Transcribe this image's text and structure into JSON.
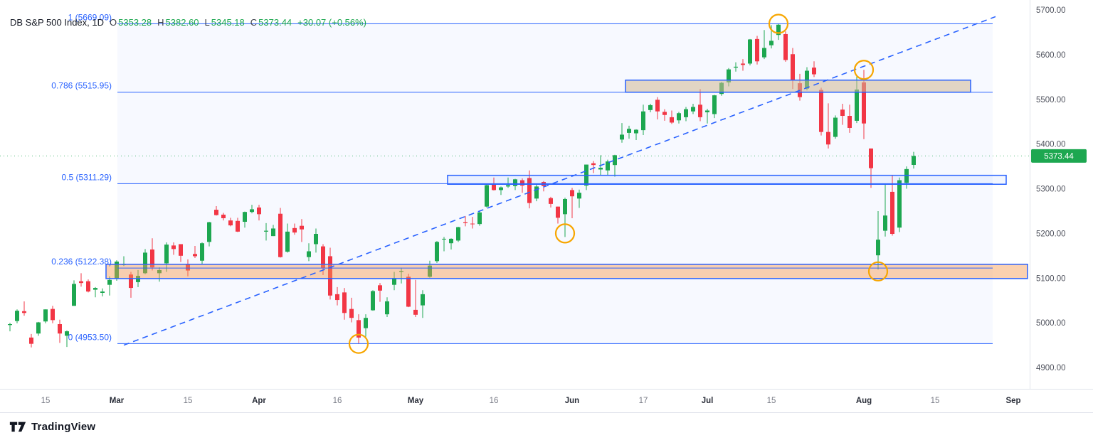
{
  "header": {
    "symbol": "DB S&P 500 Index, 1D",
    "ohlc": {
      "o_label": "O",
      "o_value": "5353.28",
      "h_label": "H",
      "h_value": "5382.60",
      "l_label": "L",
      "l_value": "5345.18",
      "c_label": "C",
      "c_value": "5373.44",
      "change": "+30.07 (+0.56%)"
    }
  },
  "footer": {
    "brand": "TradingView"
  },
  "colors": {
    "up": "#1da750",
    "down": "#f23645",
    "fib": "#2962ff",
    "fib_bg": "rgba(41,98,255,0.04)",
    "marker": "#f7a600",
    "axis_text_minor": "#787b86",
    "axis_text_major": "#2a2e39",
    "axis_text_price": "#50535e",
    "border": "#e0e3eb",
    "badge_text": "#ffffff"
  },
  "chart_data": {
    "type": "candlestick",
    "title": "DB S&P 500 Index, 1D",
    "last_price": {
      "value": 5373.44,
      "label": "5373.44"
    },
    "price_axis": {
      "ticks": [
        {
          "price": 5700,
          "label": "5700.00"
        },
        {
          "price": 5600,
          "label": "5600.00"
        },
        {
          "price": 5500,
          "label": "5500.00"
        },
        {
          "price": 5400,
          "label": "5400.00"
        },
        {
          "price": 5300,
          "label": "5300.00"
        },
        {
          "price": 5200,
          "label": "5200.00"
        },
        {
          "price": 5100,
          "label": "5100.00"
        },
        {
          "price": 5000,
          "label": "5000.00"
        },
        {
          "price": 4900,
          "label": "4900.00"
        }
      ]
    },
    "time_axis": {
      "ticks": [
        {
          "index": 5,
          "label": "15",
          "major": false
        },
        {
          "index": 15,
          "label": "Mar",
          "major": true
        },
        {
          "index": 25,
          "label": "15",
          "major": false
        },
        {
          "index": 35,
          "label": "Apr",
          "major": true
        },
        {
          "index": 46,
          "label": "16",
          "major": false
        },
        {
          "index": 57,
          "label": "May",
          "major": true
        },
        {
          "index": 68,
          "label": "16",
          "major": false
        },
        {
          "index": 79,
          "label": "Jun",
          "major": true
        },
        {
          "index": 89,
          "label": "17",
          "major": false
        },
        {
          "index": 98,
          "label": "Jul",
          "major": true
        },
        {
          "index": 107,
          "label": "15",
          "major": false
        },
        {
          "index": 120,
          "label": "Aug",
          "major": true
        },
        {
          "index": 130,
          "label": "15",
          "major": false
        },
        {
          "index": 141,
          "label": "Sep",
          "major": true
        }
      ]
    },
    "fib_x1_index": 15.1,
    "fib_x2_index": 138.1,
    "fib_levels": [
      {
        "label": "1 (5669.09)",
        "price": 5669.09
      },
      {
        "label": "0.786 (5515.95)",
        "price": 5515.95
      },
      {
        "label": "0.5 (5311.29)",
        "price": 5311.29
      },
      {
        "label": "0.236 (5122.38)",
        "price": 5122.38
      },
      {
        "label": "0 (4953.50)",
        "price": 4953.5
      }
    ],
    "zones": [
      {
        "name": "supply-zone-5516",
        "x1_index": 86.5,
        "x2_index": 135,
        "price_top": 5543,
        "price_bottom": 5516,
        "fill": "rgba(209,184,148,0.55)"
      },
      {
        "name": "support-zone-5311",
        "x1_index": 61.5,
        "x2_index": 140,
        "price_top": 5330,
        "price_bottom": 5310,
        "fill": "rgba(41,98,255,0.06)"
      },
      {
        "name": "demand-zone-5122",
        "x1_index": 13.5,
        "x2_index": 143,
        "price_top": 5131,
        "price_bottom": 5099,
        "fill": "rgba(247,152,80,0.45)"
      }
    ],
    "trendline": {
      "x1_index": 16,
      "price1": 4950,
      "x2_index": 138.5,
      "price2": 5685
    },
    "markers": [
      {
        "x_index": 49,
        "price": 4953
      },
      {
        "x_index": 78,
        "price": 5200
      },
      {
        "x_index": 108,
        "price": 5669
      },
      {
        "x_index": 120,
        "price": 5566
      },
      {
        "x_index": 122,
        "price": 5115
      }
    ],
    "candles": [
      [
        "02-08",
        4995,
        5000,
        4981,
        4997
      ],
      [
        "02-09",
        5004,
        5030,
        4999,
        5027
      ],
      [
        "02-12",
        5026,
        5048,
        5016,
        5022
      ],
      [
        "02-13",
        4967,
        4975,
        4945,
        4953
      ],
      [
        "02-14",
        4976,
        5002,
        4971,
        5001
      ],
      [
        "02-15",
        5003,
        5030,
        4999,
        5030
      ],
      [
        "02-16",
        5031,
        5038,
        4999,
        5006
      ],
      [
        "02-20",
        4997,
        5007,
        4955,
        4976
      ],
      [
        "02-21",
        4971,
        4983,
        4946,
        4981
      ],
      [
        "02-22",
        5038,
        5095,
        5038,
        5087
      ],
      [
        "02-23",
        5093,
        5111,
        5081,
        5089
      ],
      [
        "02-26",
        5093,
        5097,
        5068,
        5070
      ],
      [
        "02-27",
        5074,
        5080,
        5057,
        5078
      ],
      [
        "02-28",
        5067,
        5077,
        5059,
        5070
      ],
      [
        "02-29",
        5085,
        5104,
        5061,
        5096
      ],
      [
        "03-01",
        5098,
        5140,
        5094,
        5137
      ],
      [
        "03-04",
        5131,
        5149,
        5127,
        5131
      ],
      [
        "03-05",
        5108,
        5114,
        5056,
        5078
      ],
      [
        "03-06",
        5091,
        5118,
        5080,
        5105
      ],
      [
        "03-07",
        5111,
        5165,
        5109,
        5157
      ],
      [
        "03-08",
        5164,
        5189,
        5117,
        5124
      ],
      [
        "03-11",
        5111,
        5124,
        5092,
        5118
      ],
      [
        "03-12",
        5133,
        5180,
        5114,
        5175
      ],
      [
        "03-13",
        5173,
        5180,
        5152,
        5165
      ],
      [
        "03-14",
        5176,
        5176,
        5136,
        5150
      ],
      [
        "03-15",
        5130,
        5142,
        5104,
        5117
      ],
      [
        "03-18",
        5154,
        5172,
        5145,
        5149
      ],
      [
        "03-19",
        5139,
        5180,
        5131,
        5178
      ],
      [
        "03-20",
        5181,
        5226,
        5171,
        5225
      ],
      [
        "03-21",
        5253,
        5261,
        5240,
        5241
      ],
      [
        "03-22",
        5242,
        5246,
        5229,
        5234
      ],
      [
        "03-25",
        5229,
        5235,
        5216,
        5218
      ],
      [
        "03-26",
        5228,
        5235,
        5203,
        5204
      ],
      [
        "03-27",
        5226,
        5249,
        5213,
        5248
      ],
      [
        "03-28",
        5248,
        5264,
        5245,
        5254
      ],
      [
        "04-01",
        5258,
        5264,
        5229,
        5243
      ],
      [
        "04-02",
        5204,
        5223,
        5184,
        5206
      ],
      [
        "04-03",
        5194,
        5219,
        5194,
        5211
      ],
      [
        "04-04",
        5244,
        5257,
        5146,
        5147
      ],
      [
        "04-05",
        5159,
        5222,
        5157,
        5204
      ],
      [
        "04-08",
        5212,
        5222,
        5197,
        5202
      ],
      [
        "04-09",
        5217,
        5232,
        5181,
        5209
      ],
      [
        "04-10",
        5147,
        5178,
        5138,
        5160
      ],
      [
        "04-11",
        5176,
        5211,
        5157,
        5199
      ],
      [
        "04-12",
        5171,
        5176,
        5107,
        5123
      ],
      [
        "04-15",
        5149,
        5168,
        5052,
        5061
      ],
      [
        "04-16",
        5064,
        5080,
        5039,
        5051
      ],
      [
        "04-17",
        5068,
        5078,
        5007,
        5022
      ],
      [
        "04-18",
        5031,
        5056,
        5001,
        5011
      ],
      [
        "04-19",
        5006,
        5019,
        4953,
        4967
      ],
      [
        "04-22",
        4988,
        5019,
        4969,
        5011
      ],
      [
        "04-23",
        5028,
        5073,
        5027,
        5071
      ],
      [
        "04-24",
        5084,
        5089,
        5047,
        5072
      ],
      [
        "04-25",
        5019,
        5057,
        5013,
        5048
      ],
      [
        "04-26",
        5085,
        5114,
        5073,
        5100
      ],
      [
        "04-29",
        5114,
        5123,
        5088,
        5116
      ],
      [
        "04-30",
        5103,
        5110,
        5035,
        5036
      ],
      [
        "05-01",
        5029,
        5096,
        5013,
        5018
      ],
      [
        "05-02",
        5039,
        5073,
        5011,
        5064
      ],
      [
        "05-03",
        5103,
        5139,
        5101,
        5128
      ],
      [
        "05-06",
        5138,
        5183,
        5134,
        5181
      ],
      [
        "05-07",
        5188,
        5192,
        5160,
        5188
      ],
      [
        "05-08",
        5178,
        5189,
        5164,
        5188
      ],
      [
        "05-09",
        5184,
        5215,
        5181,
        5214
      ],
      [
        "05-10",
        5225,
        5239,
        5216,
        5223
      ],
      [
        "05-13",
        5222,
        5237,
        5211,
        5221
      ],
      [
        "05-14",
        5221,
        5250,
        5217,
        5247
      ],
      [
        "05-15",
        5260,
        5312,
        5258,
        5308
      ],
      [
        "05-16",
        5309,
        5325,
        5296,
        5297
      ],
      [
        "05-17",
        5297,
        5305,
        5286,
        5303
      ],
      [
        "05-20",
        5305,
        5325,
        5302,
        5308
      ],
      [
        "05-21",
        5306,
        5322,
        5297,
        5321
      ],
      [
        "05-22",
        5319,
        5323,
        5291,
        5307
      ],
      [
        "05-23",
        5324,
        5341,
        5256,
        5268
      ],
      [
        "05-24",
        5278,
        5311,
        5272,
        5305
      ],
      [
        "05-28",
        5315,
        5317,
        5294,
        5306
      ],
      [
        "05-29",
        5279,
        5282,
        5258,
        5266
      ],
      [
        "05-30",
        5260,
        5260,
        5222,
        5235
      ],
      [
        "05-31",
        5243,
        5280,
        5192,
        5277
      ],
      [
        "06-03",
        5297,
        5302,
        5234,
        5283
      ],
      [
        "06-04",
        5278,
        5298,
        5257,
        5291
      ],
      [
        "06-05",
        5307,
        5354,
        5297,
        5354
      ],
      [
        "06-06",
        5357,
        5362,
        5335,
        5353
      ],
      [
        "06-07",
        5343,
        5375,
        5331,
        5347
      ],
      [
        "06-10",
        5341,
        5365,
        5331,
        5361
      ],
      [
        "06-11",
        5353,
        5376,
        5327,
        5375
      ],
      [
        "06-12",
        5410,
        5447,
        5403,
        5421
      ],
      [
        "06-13",
        5425,
        5441,
        5412,
        5434
      ],
      [
        "06-14",
        5424,
        5433,
        5409,
        5432
      ],
      [
        "06-17",
        5431,
        5488,
        5420,
        5473
      ],
      [
        "06-18",
        5476,
        5490,
        5471,
        5487
      ],
      [
        "06-20",
        5499,
        5505,
        5455,
        5473
      ],
      [
        "06-21",
        5472,
        5478,
        5452,
        5465
      ],
      [
        "06-24",
        5460,
        5475,
        5445,
        5448
      ],
      [
        "06-25",
        5453,
        5472,
        5446,
        5469
      ],
      [
        "06-26",
        5460,
        5483,
        5451,
        5478
      ],
      [
        "06-27",
        5473,
        5490,
        5467,
        5483
      ],
      [
        "06-28",
        5488,
        5523,
        5451,
        5460
      ],
      [
        "07-01",
        5471,
        5479,
        5446,
        5475
      ],
      [
        "07-02",
        5467,
        5510,
        5458,
        5509
      ],
      [
        "07-03",
        5512,
        5539,
        5508,
        5537
      ],
      [
        "07-05",
        5538,
        5570,
        5529,
        5567
      ],
      [
        "07-08",
        5571,
        5583,
        5562,
        5573
      ],
      [
        "07-09",
        5580,
        5590,
        5564,
        5577
      ],
      [
        "07-10",
        5580,
        5635,
        5576,
        5634
      ],
      [
        "07-11",
        5635,
        5642,
        5578,
        5585
      ],
      [
        "07-12",
        5594,
        5655,
        5590,
        5615
      ],
      [
        "07-15",
        5621,
        5666,
        5614,
        5631
      ],
      [
        "07-16",
        5644,
        5669,
        5633,
        5667
      ],
      [
        "07-17",
        5646,
        5652,
        5584,
        5588
      ],
      [
        "07-18",
        5601,
        5615,
        5523,
        5544
      ],
      [
        "07-19",
        5536,
        5557,
        5497,
        5505
      ],
      [
        "07-22",
        5524,
        5572,
        5520,
        5564
      ],
      [
        "07-23",
        5571,
        5585,
        5550,
        5556
      ],
      [
        "07-24",
        5521,
        5526,
        5419,
        5427
      ],
      [
        "07-25",
        5427,
        5491,
        5390,
        5399
      ],
      [
        "07-26",
        5416,
        5464,
        5412,
        5459
      ],
      [
        "07-29",
        5477,
        5490,
        5443,
        5463
      ],
      [
        "07-30",
        5463,
        5488,
        5425,
        5436
      ],
      [
        "07-31",
        5452,
        5551,
        5447,
        5522
      ],
      [
        "08-01",
        5538,
        5566,
        5411,
        5446
      ],
      [
        "08-02",
        5390,
        5390,
        5302,
        5346
      ],
      [
        "08-05",
        5151,
        5250,
        5119,
        5186
      ],
      [
        "08-06",
        5206,
        5312,
        5193,
        5240
      ],
      [
        "08-07",
        5293,
        5330,
        5195,
        5199
      ],
      [
        "08-08",
        5213,
        5325,
        5203,
        5319
      ],
      [
        "08-09",
        5313,
        5350,
        5300,
        5344
      ],
      [
        "08-12",
        5353.28,
        5382.6,
        5345.18,
        5373.44
      ]
    ]
  }
}
